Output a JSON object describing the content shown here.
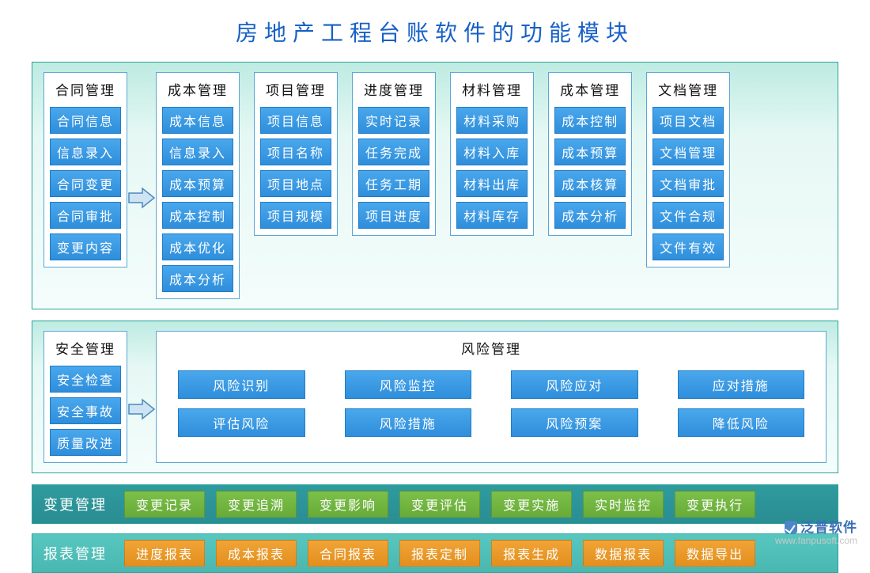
{
  "title": "房地产工程台账软件的功能模块",
  "colors": {
    "title_color": "#1760c7",
    "panel_border": "#2aa39a",
    "panel_bg_top": "#bdebe2",
    "panel_bg_bottom": "#f4fdfb",
    "module_border": "#5aa7d8",
    "tag_bg_top": "#49a7ec",
    "tag_bg_bottom": "#2f8edb",
    "tag_border": "#1f7cc7",
    "tag_text": "#ffffff",
    "arrow_fill": "#cfe4f3",
    "arrow_stroke": "#4a88bd",
    "bar_teal": "#2f9b9f",
    "bar_cyan": "#57c7c0",
    "chip_green": "#7cc04a",
    "chip_orange": "#f0a437"
  },
  "row1": {
    "has_arrow_after_first": true,
    "modules": [
      {
        "title": "合同管理",
        "items": [
          "合同信息",
          "信息录入",
          "合同变更",
          "合同审批",
          "变更内容"
        ]
      },
      {
        "title": "成本管理",
        "items": [
          "成本信息",
          "信息录入",
          "成本预算",
          "成本控制",
          "成本优化",
          "成本分析"
        ]
      },
      {
        "title": "项目管理",
        "items": [
          "项目信息",
          "项目名称",
          "项目地点",
          "项目规模"
        ]
      },
      {
        "title": "进度管理",
        "items": [
          "实时记录",
          "任务完成",
          "任务工期",
          "项目进度"
        ]
      },
      {
        "title": "材料管理",
        "items": [
          "材料采购",
          "材料入库",
          "材料出库",
          "材料库存"
        ]
      },
      {
        "title": "成本管理",
        "items": [
          "成本控制",
          "成本预算",
          "成本核算",
          "成本分析"
        ]
      },
      {
        "title": "文档管理",
        "items": [
          "项目文档",
          "文档管理",
          "文档审批",
          "文件合规",
          "文件有效"
        ]
      }
    ]
  },
  "row2": {
    "left": {
      "title": "安全管理",
      "items": [
        "安全检查",
        "安全事故",
        "质量改进"
      ]
    },
    "has_arrow": true,
    "right": {
      "title": "风险管理",
      "items": [
        "风险识别",
        "风险监控",
        "风险应对",
        "应对措施",
        "评估风险",
        "风险措施",
        "风险预案",
        "降低风险"
      ]
    }
  },
  "bars": [
    {
      "style": "teal",
      "chip_style": "green",
      "label": "变更管理",
      "chips": [
        "变更记录",
        "变更追溯",
        "变更影响",
        "变更评估",
        "变更实施",
        "实时监控",
        "变更执行"
      ]
    },
    {
      "style": "cyan",
      "chip_style": "orange",
      "label": "报表管理",
      "chips": [
        "进度报表",
        "成本报表",
        "合同报表",
        "报表定制",
        "报表生成",
        "数据报表",
        "数据导出"
      ]
    }
  ],
  "watermark": {
    "brand": "泛普软件",
    "url": "www.fanpusoft.com"
  }
}
